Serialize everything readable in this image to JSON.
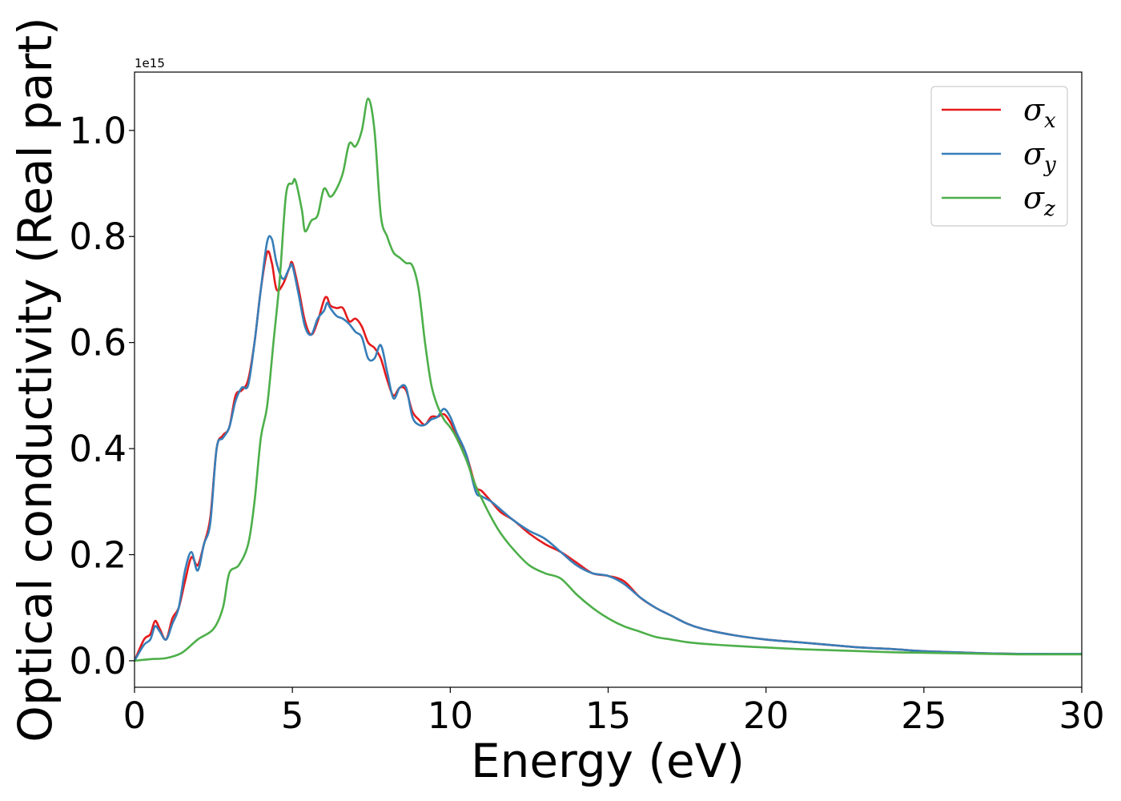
{
  "chart_data": {
    "type": "line",
    "xlabel": "Energy (eV)",
    "ylabel": "Optical conductivity (Real part)",
    "y_offset_label": "1e15",
    "xlim": [
      0,
      30
    ],
    "ylim": [
      -0.05,
      1.11
    ],
    "x_ticks": [
      0,
      5,
      10,
      15,
      20,
      25,
      30
    ],
    "y_ticks": [
      0.0,
      0.2,
      0.4,
      0.6,
      0.8,
      1.0
    ],
    "x_tick_labels": [
      "0",
      "5",
      "10",
      "15",
      "20",
      "25",
      "30"
    ],
    "y_tick_labels": [
      "0.0",
      "0.2",
      "0.4",
      "0.6",
      "0.8",
      "1.0"
    ],
    "grid": false,
    "legend_position": "top-right",
    "series": [
      {
        "name": "σx",
        "symbol": "σ",
        "subscript": "x",
        "color": "#e41a1c",
        "x": [
          0,
          0.3,
          0.5,
          0.65,
          0.8,
          1.0,
          1.2,
          1.4,
          1.6,
          1.8,
          2.0,
          2.2,
          2.4,
          2.6,
          2.8,
          3.0,
          3.2,
          3.4,
          3.6,
          3.8,
          4.0,
          4.2,
          4.35,
          4.5,
          4.7,
          4.9,
          5.0,
          5.2,
          5.4,
          5.6,
          5.8,
          6.0,
          6.1,
          6.2,
          6.4,
          6.6,
          6.8,
          7.0,
          7.2,
          7.4,
          7.6,
          7.8,
          8.0,
          8.2,
          8.4,
          8.6,
          8.8,
          9.0,
          9.2,
          9.4,
          9.6,
          9.8,
          10.0,
          10.2,
          10.5,
          10.8,
          11.0,
          11.3,
          11.6,
          12.0,
          12.5,
          13.0,
          13.5,
          14.0,
          14.5,
          15.0,
          15.5,
          16.0,
          16.5,
          17.0,
          17.5,
          18.0,
          19.0,
          20.0,
          21.0,
          22.0,
          23.0,
          24.0,
          25.0,
          26.0,
          27.0,
          28.0,
          29.0,
          30.0
        ],
        "y": [
          0.0,
          0.04,
          0.05,
          0.075,
          0.06,
          0.04,
          0.08,
          0.1,
          0.15,
          0.195,
          0.18,
          0.22,
          0.27,
          0.4,
          0.425,
          0.44,
          0.5,
          0.51,
          0.53,
          0.6,
          0.7,
          0.77,
          0.75,
          0.7,
          0.71,
          0.74,
          0.75,
          0.7,
          0.64,
          0.615,
          0.64,
          0.68,
          0.685,
          0.67,
          0.665,
          0.665,
          0.64,
          0.645,
          0.63,
          0.6,
          0.59,
          0.57,
          0.53,
          0.5,
          0.515,
          0.51,
          0.47,
          0.455,
          0.445,
          0.46,
          0.46,
          0.465,
          0.45,
          0.425,
          0.39,
          0.33,
          0.32,
          0.3,
          0.28,
          0.265,
          0.24,
          0.22,
          0.205,
          0.185,
          0.165,
          0.16,
          0.15,
          0.12,
          0.1,
          0.085,
          0.07,
          0.06,
          0.048,
          0.04,
          0.035,
          0.03,
          0.025,
          0.022,
          0.018,
          0.016,
          0.014,
          0.013,
          0.013,
          0.013
        ]
      },
      {
        "name": "σy",
        "symbol": "σ",
        "subscript": "y",
        "color": "#377eb8",
        "x": [
          0,
          0.3,
          0.5,
          0.65,
          0.8,
          1.0,
          1.2,
          1.4,
          1.6,
          1.8,
          2.0,
          2.2,
          2.4,
          2.6,
          2.8,
          3.0,
          3.2,
          3.4,
          3.6,
          3.8,
          4.0,
          4.2,
          4.35,
          4.5,
          4.7,
          4.9,
          5.0,
          5.2,
          5.4,
          5.6,
          5.8,
          6.0,
          6.1,
          6.2,
          6.4,
          6.6,
          6.8,
          7.0,
          7.2,
          7.4,
          7.6,
          7.8,
          8.0,
          8.2,
          8.4,
          8.6,
          8.8,
          9.0,
          9.2,
          9.4,
          9.6,
          9.8,
          10.0,
          10.2,
          10.5,
          10.8,
          11.0,
          11.3,
          11.6,
          12.0,
          12.5,
          13.0,
          13.5,
          14.0,
          14.5,
          15.0,
          15.5,
          16.0,
          16.5,
          17.0,
          17.5,
          18.0,
          19.0,
          20.0,
          21.0,
          22.0,
          23.0,
          24.0,
          25.0,
          26.0,
          27.0,
          28.0,
          29.0,
          30.0
        ],
        "y": [
          0.0,
          0.03,
          0.04,
          0.065,
          0.055,
          0.04,
          0.07,
          0.1,
          0.17,
          0.205,
          0.17,
          0.22,
          0.26,
          0.4,
          0.42,
          0.44,
          0.49,
          0.515,
          0.52,
          0.6,
          0.7,
          0.79,
          0.795,
          0.75,
          0.72,
          0.74,
          0.745,
          0.69,
          0.63,
          0.615,
          0.645,
          0.66,
          0.675,
          0.665,
          0.65,
          0.645,
          0.635,
          0.62,
          0.61,
          0.57,
          0.57,
          0.595,
          0.545,
          0.495,
          0.515,
          0.515,
          0.46,
          0.445,
          0.445,
          0.455,
          0.46,
          0.475,
          0.46,
          0.43,
          0.39,
          0.32,
          0.31,
          0.3,
          0.285,
          0.265,
          0.245,
          0.23,
          0.205,
          0.18,
          0.165,
          0.16,
          0.145,
          0.12,
          0.1,
          0.085,
          0.07,
          0.06,
          0.048,
          0.04,
          0.035,
          0.03,
          0.025,
          0.022,
          0.018,
          0.016,
          0.014,
          0.013,
          0.013,
          0.013
        ]
      },
      {
        "name": "σz",
        "symbol": "σ",
        "subscript": "z",
        "color": "#4daf4a",
        "x": [
          0,
          0.5,
          1.0,
          1.5,
          2.0,
          2.5,
          2.8,
          3.0,
          3.3,
          3.6,
          3.8,
          4.0,
          4.2,
          4.4,
          4.6,
          4.8,
          5.0,
          5.1,
          5.3,
          5.4,
          5.6,
          5.8,
          6.0,
          6.2,
          6.4,
          6.6,
          6.8,
          7.0,
          7.2,
          7.4,
          7.6,
          7.8,
          8.0,
          8.2,
          8.4,
          8.6,
          8.8,
          9.0,
          9.2,
          9.4,
          9.6,
          9.8,
          10.0,
          10.2,
          10.5,
          10.8,
          11.0,
          11.3,
          11.6,
          12.0,
          12.5,
          13.0,
          13.5,
          14.0,
          14.5,
          15.0,
          15.5,
          16.0,
          16.5,
          17.0,
          17.5,
          18.0,
          19.0,
          20.0,
          21.0,
          22.0,
          23.0,
          24.0,
          25.0,
          26.0,
          27.0,
          28.0,
          29.0,
          30.0
        ],
        "y": [
          0.0,
          0.003,
          0.005,
          0.015,
          0.04,
          0.06,
          0.1,
          0.165,
          0.18,
          0.22,
          0.3,
          0.42,
          0.48,
          0.6,
          0.72,
          0.88,
          0.9,
          0.905,
          0.85,
          0.81,
          0.83,
          0.84,
          0.89,
          0.875,
          0.89,
          0.92,
          0.975,
          0.97,
          1.0,
          1.06,
          1.0,
          0.84,
          0.8,
          0.77,
          0.76,
          0.75,
          0.745,
          0.7,
          0.6,
          0.52,
          0.48,
          0.455,
          0.44,
          0.42,
          0.38,
          0.33,
          0.305,
          0.27,
          0.24,
          0.21,
          0.18,
          0.165,
          0.155,
          0.125,
          0.1,
          0.08,
          0.065,
          0.055,
          0.045,
          0.04,
          0.035,
          0.032,
          0.028,
          0.025,
          0.022,
          0.02,
          0.018,
          0.016,
          0.015,
          0.014,
          0.013,
          0.012,
          0.012,
          0.012
        ]
      }
    ]
  }
}
